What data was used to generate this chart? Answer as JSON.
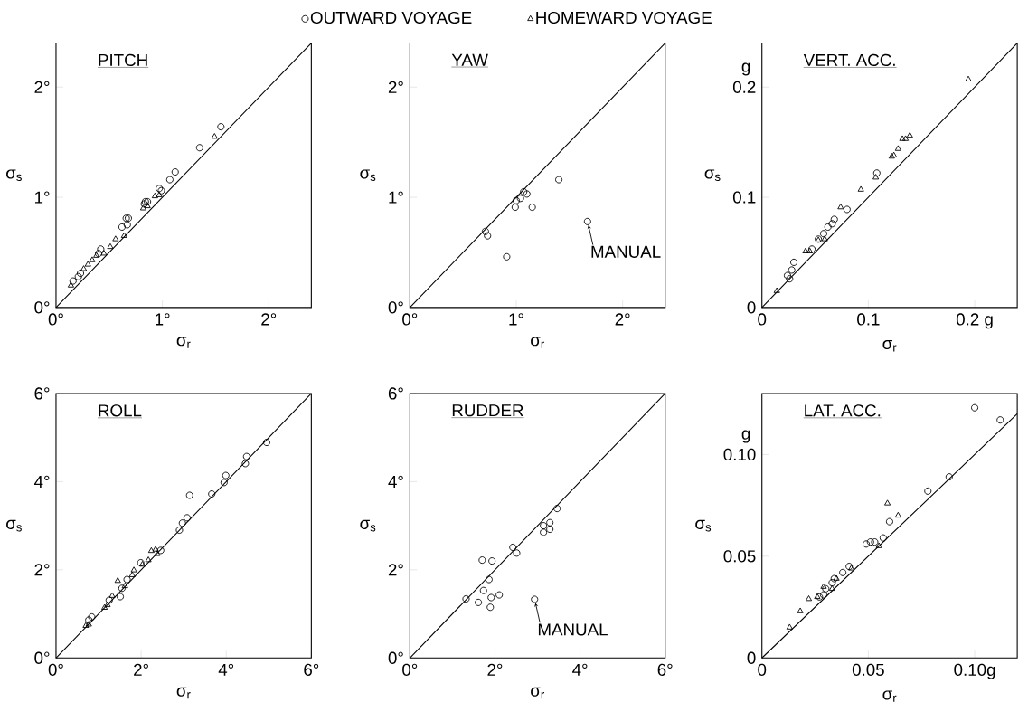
{
  "chart_data": [
    {
      "type": "scatter",
      "title": "PITCH",
      "xlabel": "σ$_{r}$",
      "ylabel": "σ$_{s}$",
      "xlim": [
        0,
        2.4
      ],
      "ylim": [
        0,
        2.4
      ],
      "xticks": [
        {
          "value": 0,
          "label": "0°"
        },
        {
          "value": 1,
          "label": "1°"
        },
        {
          "value": 2,
          "label": "2°"
        }
      ],
      "yticks": [
        {
          "value": 0,
          "label": "0°"
        },
        {
          "value": 1,
          "label": "1°"
        },
        {
          "value": 2,
          "label": "2°"
        }
      ],
      "legend": "top",
      "series": [
        {
          "name": "OUTWARD VOYAGE",
          "color": "#000000",
          "marker": "circle",
          "x": [
            1.55,
            1.35,
            1.07,
            1.12,
            0.97,
            0.99,
            0.84,
            0.86,
            0.83,
            0.68,
            0.66,
            0.62,
            0.67,
            0.42,
            0.4,
            0.23,
            0.21,
            0.16
          ],
          "values": [
            1.64,
            1.45,
            1.16,
            1.23,
            1.08,
            1.06,
            0.96,
            0.96,
            0.94,
            0.81,
            0.81,
            0.73,
            0.75,
            0.53,
            0.49,
            0.31,
            0.28,
            0.24
          ]
        },
        {
          "name": "HOMEWARD VOYAGE",
          "color": "#000000",
          "marker": "triangle",
          "x": [
            1.49,
            0.97,
            0.93,
            0.86,
            0.82,
            0.64,
            0.56,
            0.51,
            0.45,
            0.38,
            0.34,
            0.3,
            0.26,
            0.14
          ],
          "values": [
            1.55,
            1.02,
            1.01,
            0.92,
            0.9,
            0.65,
            0.62,
            0.55,
            0.49,
            0.47,
            0.43,
            0.39,
            0.35,
            0.2
          ]
        },
        {
          "type": "line",
          "color": "#000000",
          "x": [
            0,
            2.4
          ],
          "values": [
            0,
            2.4
          ]
        }
      ]
    },
    {
      "type": "scatter",
      "title": "YAW",
      "xlabel": "σ$_{r}$",
      "ylabel": "σ$_{s}$",
      "xlim": [
        0,
        2.4
      ],
      "ylim": [
        0,
        2.4
      ],
      "xticks": [
        {
          "value": 0,
          "label": "0°"
        },
        {
          "value": 1,
          "label": "1°"
        },
        {
          "value": 2,
          "label": "2°"
        }
      ],
      "yticks": [
        {
          "value": 0,
          "label": "0°"
        },
        {
          "value": 1,
          "label": "1°"
        },
        {
          "value": 2,
          "label": "2°"
        }
      ],
      "annotations": [
        {
          "text": "MANUAL",
          "x": 1.67,
          "y": 0.78
        }
      ],
      "series": [
        {
          "color": "#000000",
          "marker": "circle",
          "x": [
            0.71,
            0.73,
            0.91,
            0.99,
            1.0,
            1.04,
            1.07,
            1.1,
            1.15,
            1.4,
            1.67
          ],
          "values": [
            0.69,
            0.65,
            0.46,
            0.91,
            0.97,
            0.99,
            1.05,
            1.03,
            0.91,
            1.16,
            0.78
          ]
        },
        {
          "type": "line",
          "color": "#000000",
          "x": [
            0,
            2.4
          ],
          "values": [
            0,
            2.4
          ]
        }
      ]
    },
    {
      "type": "scatter",
      "title": "VERT. ACC.",
      "xlabel": "σ$_{r}$",
      "ylabel": "σ$_{s}$",
      "xlim": [
        0,
        0.24
      ],
      "ylim": [
        0,
        0.24
      ],
      "xticks": [
        0,
        0.1,
        {
          "value": 0.2,
          "label": "0.2 g"
        }
      ],
      "yticks": [
        0,
        0.1,
        0.2
      ],
      "annotations": [
        "g"
      ],
      "series": [
        {
          "color": "#000000",
          "marker": "circle",
          "x": [
            0.108,
            0.08,
            0.068,
            0.066,
            0.062,
            0.058,
            0.053,
            0.047,
            0.03,
            0.024,
            0.026,
            0.028
          ],
          "values": [
            0.122,
            0.089,
            0.08,
            0.076,
            0.073,
            0.067,
            0.062,
            0.053,
            0.041,
            0.029,
            0.026,
            0.034
          ]
        },
        {
          "color": "#000000",
          "marker": "triangle",
          "x": [
            0.194,
            0.139,
            0.135,
            0.132,
            0.128,
            0.124,
            0.122,
            0.107,
            0.093,
            0.074,
            0.059,
            0.053,
            0.045,
            0.041,
            0.014
          ],
          "values": [
            0.207,
            0.156,
            0.153,
            0.153,
            0.144,
            0.138,
            0.137,
            0.118,
            0.107,
            0.091,
            0.062,
            0.061,
            0.051,
            0.051,
            0.015
          ]
        },
        {
          "type": "line",
          "color": "#000000",
          "x": [
            0,
            0.24
          ],
          "values": [
            0,
            0.24
          ]
        }
      ]
    },
    {
      "type": "scatter",
      "title": "ROLL",
      "xlabel": "σ$_{r}$",
      "ylabel": "σ$_{s}$",
      "xlim": [
        0,
        6
      ],
      "ylim": [
        0,
        6
      ],
      "xticks": [
        {
          "value": 0,
          "label": "0°"
        },
        {
          "value": 2,
          "label": "2°"
        },
        {
          "value": 4,
          "label": "4°"
        },
        {
          "value": 6,
          "label": "6°"
        }
      ],
      "yticks": [
        {
          "value": 0,
          "label": "0°"
        },
        {
          "value": 2,
          "label": "2°"
        },
        {
          "value": 4,
          "label": "4°"
        },
        {
          "value": 6,
          "label": "6°"
        }
      ],
      "series": [
        {
          "color": "#000000",
          "marker": "circle",
          "x": [
            4.95,
            4.48,
            4.45,
            3.99,
            3.95,
            3.66,
            3.14,
            3.08,
            2.97,
            2.9,
            2.46,
            1.99,
            1.67,
            1.51,
            1.55,
            1.25,
            0.84,
            0.77
          ],
          "values": [
            4.89,
            4.57,
            4.41,
            4.14,
            3.98,
            3.72,
            3.69,
            3.18,
            3.06,
            2.9,
            2.44,
            2.16,
            1.78,
            1.39,
            1.58,
            1.31,
            0.93,
            0.86
          ]
        },
        {
          "color": "#000000",
          "marker": "triangle",
          "x": [
            2.34,
            2.24,
            2.38,
            2.17,
            2.03,
            1.83,
            1.79,
            1.62,
            1.45,
            1.32,
            1.21,
            1.14,
            0.77,
            0.7
          ],
          "values": [
            2.46,
            2.43,
            2.36,
            2.22,
            2.12,
            1.99,
            1.88,
            1.63,
            1.75,
            1.41,
            1.2,
            1.14,
            0.76,
            0.73
          ]
        },
        {
          "type": "line",
          "color": "#000000",
          "x": [
            0,
            6
          ],
          "values": [
            0,
            6
          ]
        }
      ]
    },
    {
      "type": "scatter",
      "title": "RUDDER",
      "xlabel": "σ$_{r}$",
      "ylabel": "σ$_{s}$",
      "xlim": [
        0,
        6
      ],
      "ylim": [
        0,
        6
      ],
      "xticks": [
        {
          "value": 0,
          "label": "0°"
        },
        {
          "value": 2,
          "label": "2°"
        },
        {
          "value": 4,
          "label": "4°"
        },
        {
          "value": 6,
          "label": "6°"
        }
      ],
      "yticks": [
        {
          "value": 0,
          "label": "0°"
        },
        {
          "value": 2,
          "label": "2°"
        },
        {
          "value": 4,
          "label": "4°"
        },
        {
          "value": 6,
          "label": "6°"
        }
      ],
      "annotations": [
        {
          "text": "MANUAL",
          "x": 2.93,
          "y": 1.33
        }
      ],
      "series": [
        {
          "color": "#000000",
          "marker": "circle",
          "x": [
            3.46,
            3.29,
            3.29,
            3.14,
            3.14,
            2.42,
            2.51,
            1.7,
            1.93,
            1.86,
            1.73,
            1.32,
            1.61,
            1.91,
            2.1,
            1.89,
            2.93
          ],
          "values": [
            3.39,
            3.07,
            2.92,
            3.0,
            2.85,
            2.51,
            2.38,
            2.22,
            2.2,
            1.78,
            1.53,
            1.34,
            1.26,
            1.37,
            1.43,
            1.15,
            1.33
          ]
        },
        {
          "type": "line",
          "color": "#000000",
          "x": [
            0,
            6
          ],
          "values": [
            0,
            6
          ]
        }
      ]
    },
    {
      "type": "scatter",
      "title": "LAT. ACC.",
      "xlabel": "σ$_{r}$",
      "ylabel": "σ$_{s}$",
      "xlim": [
        0,
        0.12
      ],
      "ylim": [
        0,
        0.13
      ],
      "xticks": [
        0,
        0.05,
        {
          "value": 0.1,
          "label": "0.10g"
        }
      ],
      "yticks": [
        0,
        0.05,
        {
          "value": 0.1,
          "label": "0.10"
        }
      ],
      "annotations": [
        "g"
      ],
      "series": [
        {
          "color": "#000000",
          "marker": "circle",
          "x": [
            0.1,
            0.112,
            0.088,
            0.078,
            0.06,
            0.057,
            0.049,
            0.051,
            0.053,
            0.041,
            0.038,
            0.034,
            0.033,
            0.03,
            0.029,
            0.027
          ],
          "values": [
            0.123,
            0.117,
            0.089,
            0.082,
            0.067,
            0.059,
            0.056,
            0.057,
            0.057,
            0.045,
            0.042,
            0.039,
            0.037,
            0.034,
            0.031,
            0.03
          ]
        },
        {
          "color": "#000000",
          "marker": "triangle",
          "x": [
            0.059,
            0.064,
            0.055,
            0.042,
            0.035,
            0.033,
            0.029,
            0.026,
            0.022,
            0.018,
            0.013
          ],
          "values": [
            0.076,
            0.07,
            0.055,
            0.044,
            0.039,
            0.034,
            0.035,
            0.03,
            0.029,
            0.023,
            0.015
          ]
        },
        {
          "type": "line",
          "color": "#000000",
          "x": [
            0,
            0.12
          ],
          "values": [
            0,
            0.12
          ]
        }
      ]
    }
  ]
}
